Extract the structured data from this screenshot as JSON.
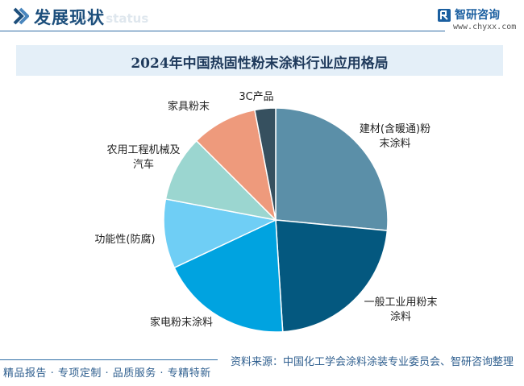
{
  "header": {
    "title": "发展现状",
    "subtitle_watermark": "ent status",
    "brand_name": "智研咨询",
    "brand_url": "www.chyxx.com"
  },
  "chart_data": {
    "type": "pie",
    "title": "2024年中国热固性粉末涂料行业应用格局",
    "slices": [
      {
        "label": "建材(含暖通)粉末涂料",
        "label_lines": [
          "建材(含暖通)粉",
          "末涂料"
        ],
        "value": 26.5,
        "color": "#5b8fa8"
      },
      {
        "label": "一般工业用粉末涂料",
        "label_lines": [
          "一般工业用粉末",
          "涂料"
        ],
        "value": 22.5,
        "color": "#04587f"
      },
      {
        "label": "家电粉末涂料",
        "label_lines": [
          "家电粉末涂料"
        ],
        "value": 19.0,
        "color": "#00a3e0"
      },
      {
        "label": "功能性(防腐)",
        "label_lines": [
          "功能性(防腐)"
        ],
        "value": 10.0,
        "color": "#6fcef5"
      },
      {
        "label": "农用工程机械及汽车",
        "label_lines": [
          "农用工程机械及",
          "汽车"
        ],
        "value": 9.5,
        "color": "#9bd6d0"
      },
      {
        "label": "家具粉末",
        "label_lines": [
          "家具粉末"
        ],
        "value": 9.5,
        "color": "#ee9a7c"
      },
      {
        "label": "3C产品",
        "label_lines": [
          "3C产品"
        ],
        "value": 3.0,
        "color": "#36505f"
      }
    ],
    "start_angle_deg": 0,
    "direction": "clockwise"
  },
  "footer": {
    "left_text": "精品报告 · 专项定制 · 品质服务 · 专精特新",
    "source_text": "资料来源：中国化工学会涂料涂装专业委员会、智研咨询整理"
  }
}
